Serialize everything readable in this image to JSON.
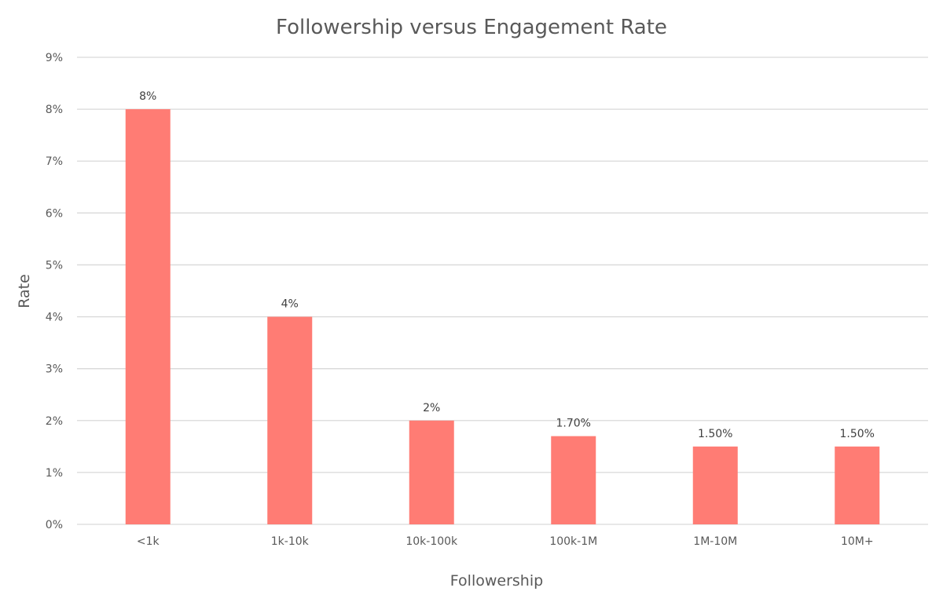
{
  "chart_data": {
    "type": "bar",
    "title": "Followership versus Engagement Rate",
    "xlabel": "Followership",
    "ylabel": "Rate",
    "categories": [
      "<1k",
      "1k-10k",
      "10k-100k",
      "100k-1M",
      "1M-10M",
      "10M+"
    ],
    "values": [
      8,
      4,
      2,
      1.7,
      1.5,
      1.5
    ],
    "data_labels": [
      "8%",
      "4%",
      "2%",
      "1.70%",
      "1.50%",
      "1.50%"
    ],
    "yticks": [
      "0%",
      "1%",
      "2%",
      "3%",
      "4%",
      "5%",
      "6%",
      "7%",
      "8%",
      "9%"
    ],
    "ylim": [
      0,
      9
    ],
    "grid": true,
    "legend": "none",
    "bar_color": "#ff7c74",
    "grid_color": "#d9d9d9",
    "text_color": "#595959"
  }
}
